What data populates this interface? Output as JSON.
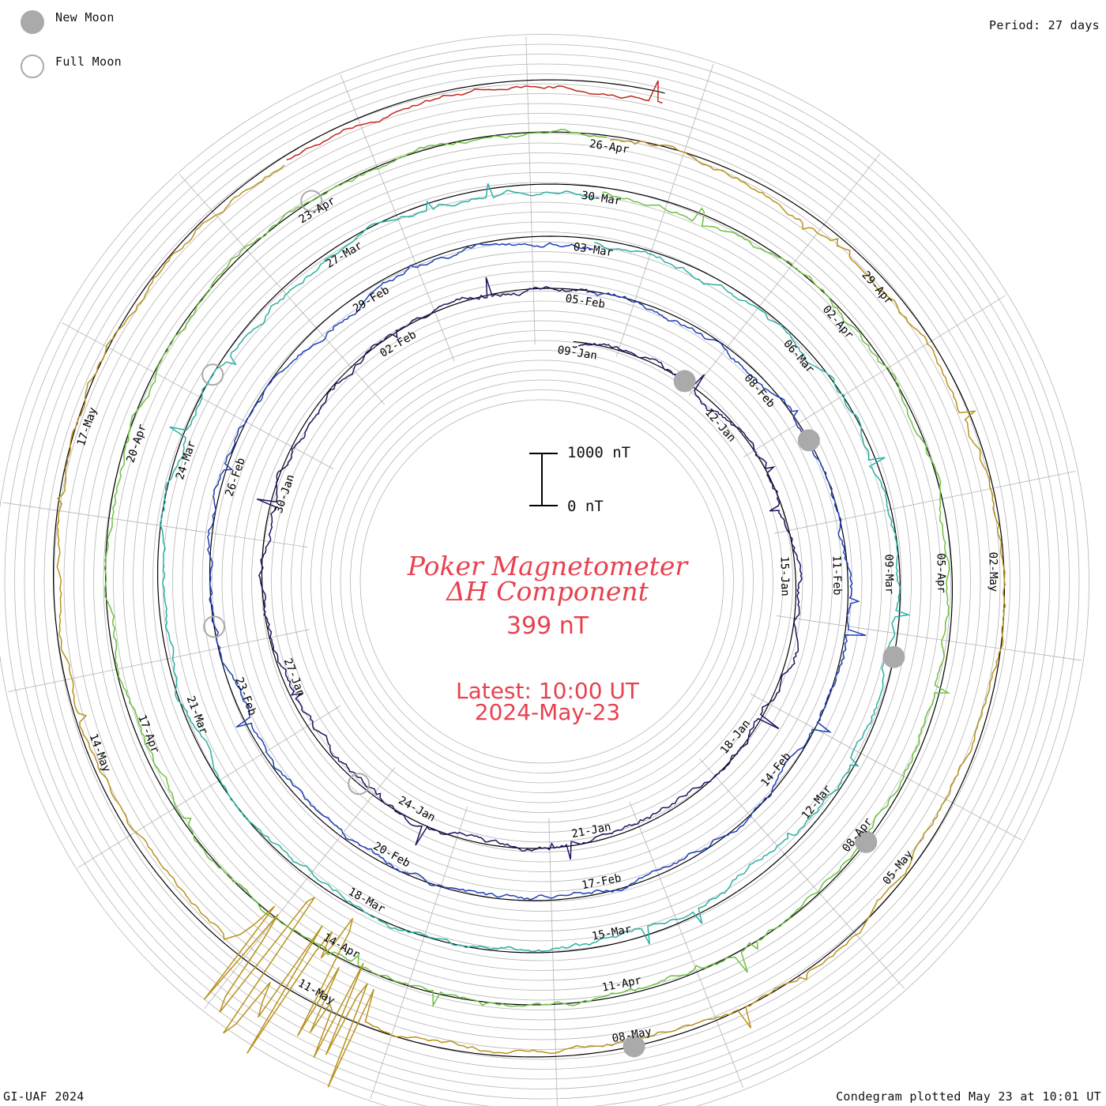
{
  "legend": {
    "new_moon_label": "New Moon",
    "full_moon_label": "Full Moon"
  },
  "period_label": "Period: 27 days",
  "footer_left": "GI-UAF 2024",
  "footer_right": "Condegram plotted May 23 at 10:01 UT",
  "center": {
    "title_line1": "Poker Magnetometer",
    "title_line2": "ΔH Component",
    "value": "399 nT",
    "latest_line1": "Latest: 10:00 UT",
    "latest_line2": "2024-May-23"
  },
  "scale_bar": {
    "top_label": "1000 nT",
    "bottom_label": "0 nT"
  },
  "colors": {
    "accent": "#e8414f",
    "grid": "#b4b4b4",
    "moon": "#aaaaaa"
  },
  "chart_data": {
    "type": "line",
    "title": "Poker Magnetometer ΔH Component",
    "period_days": 27,
    "units": "nT",
    "series": [
      {
        "start": "2024-01-08",
        "color": "#101010",
        "date_labels": [
          "09-Jan"
        ]
      },
      {
        "start": "2024-01-09",
        "color": "#1c1660",
        "date_labels": [
          "12-Jan",
          "15-Jan",
          "18-Jan",
          "21-Jan",
          "24-Jan",
          "27-Jan",
          "30-Jan",
          "02-Feb"
        ]
      },
      {
        "start": "2024-02-05",
        "color": "#1f3fb6",
        "date_labels": [
          "05-Feb",
          "08-Feb",
          "11-Feb",
          "14-Feb",
          "17-Feb",
          "20-Feb",
          "23-Feb",
          "26-Feb",
          "29-Feb"
        ]
      },
      {
        "start": "2024-03-03",
        "color": "#2bb0a2",
        "date_labels": [
          "03-Mar",
          "06-Mar",
          "09-Mar",
          "12-Mar",
          "15-Mar",
          "18-Mar",
          "21-Mar",
          "24-Mar",
          "27-Mar"
        ]
      },
      {
        "start": "2024-03-30",
        "color": "#6ec040",
        "date_labels": [
          "30-Mar",
          "02-Apr",
          "05-Apr",
          "08-Apr",
          "11-Apr",
          "14-Apr",
          "17-Apr",
          "20-Apr",
          "23-Apr"
        ]
      },
      {
        "start": "2024-04-26",
        "color": "#b8921c",
        "date_labels": [
          "26-Apr",
          "29-Apr",
          "02-May",
          "05-May",
          "08-May",
          "11-May",
          "14-May",
          "17-May"
        ]
      },
      {
        "start": "2024-05-20",
        "color": "#c0261c",
        "date_labels": []
      }
    ],
    "new_moons": [
      "2024-01-11",
      "2024-02-09",
      "2024-03-10",
      "2024-04-08",
      "2024-05-08"
    ],
    "full_moons": [
      "2024-01-25",
      "2024-02-24",
      "2024-03-25",
      "2024-04-23"
    ],
    "latest_value_nT": 399,
    "grid": true
  }
}
